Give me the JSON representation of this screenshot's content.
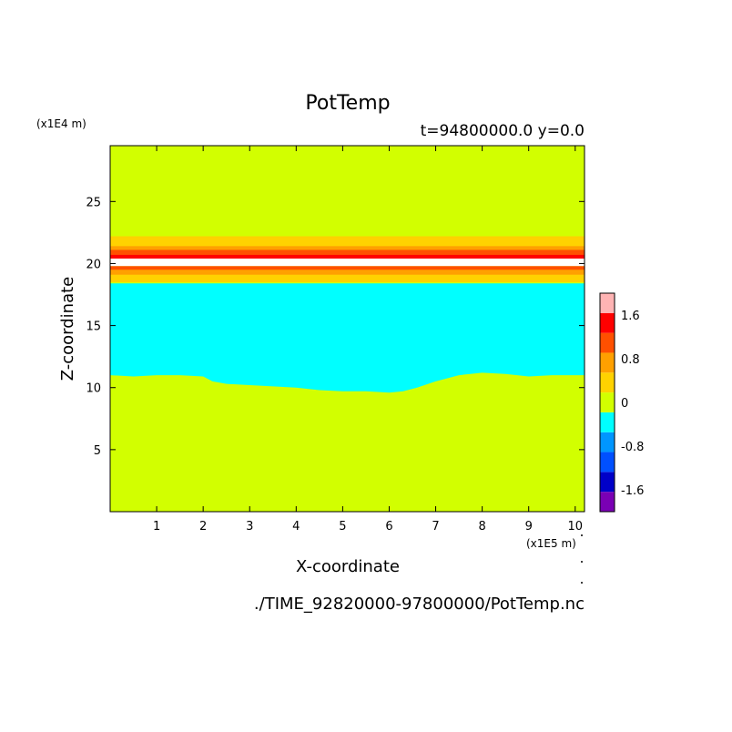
{
  "chart_data": {
    "type": "heatmap",
    "title": "PotTemp",
    "subtitle": "t=94800000.0 y=0.0",
    "xlabel": "X-coordinate",
    "ylabel": "Z-coordinate",
    "x_unit": "(x1E5 m)",
    "y_unit": "(x1E4 m)",
    "xlim": [
      0,
      10.2
    ],
    "ylim": [
      0,
      29.5
    ],
    "x_ticks": [
      1,
      2,
      3,
      4,
      5,
      6,
      7,
      8,
      9,
      10
    ],
    "y_ticks": [
      5,
      10,
      15,
      20,
      25
    ],
    "grid": false,
    "colorbar": {
      "levels": [
        -2.0,
        -1.6,
        -1.2,
        -0.8,
        -0.4,
        0,
        0.4,
        0.8,
        1.2,
        1.6,
        2.0
      ],
      "colors": [
        "#7a00b4",
        "#0000c8",
        "#0050ff",
        "#0096ff",
        "#00ffff",
        "#d2ff00",
        "#ffd200",
        "#ffa000",
        "#ff5000",
        "#ff0000",
        "#ffb4b4"
      ],
      "tick_labels": [
        "1.6",
        "0.8",
        "0",
        "-0.8",
        "-1.6"
      ],
      "tick_values": [
        1.6,
        0.8,
        0,
        -0.8,
        -1.6
      ]
    },
    "bands": [
      {
        "z_from": 0,
        "z_to": 29.5,
        "value": 0.2
      },
      {
        "z_from": 18.4,
        "z_to": 10.0,
        "value": -0.2
      },
      {
        "z_from": 18.5,
        "z_to": 19.2,
        "value": 0.6
      },
      {
        "z_from": 19.1,
        "z_to": 19.6,
        "value": 1.0
      },
      {
        "z_from": 19.5,
        "z_to": 19.8,
        "value": 1.4
      },
      {
        "z_from": 19.8,
        "z_to": 20.5,
        "value": 2.2
      },
      {
        "z_from": 20.4,
        "z_to": 20.8,
        "value": 1.8
      },
      {
        "z_from": 20.7,
        "z_to": 21.2,
        "value": 1.4
      },
      {
        "z_from": 21.1,
        "z_to": 21.5,
        "value": 1.0
      },
      {
        "z_from": 21.4,
        "z_to": 22.2,
        "value": 0.6
      }
    ],
    "cold_pool_bottom": [
      [
        0,
        11.0
      ],
      [
        0.5,
        10.9
      ],
      [
        1.0,
        11.0
      ],
      [
        1.5,
        11.0
      ],
      [
        2.0,
        10.9
      ],
      [
        2.2,
        10.5
      ],
      [
        2.5,
        10.3
      ],
      [
        3.0,
        10.2
      ],
      [
        3.5,
        10.1
      ],
      [
        4.0,
        10.0
      ],
      [
        4.5,
        9.8
      ],
      [
        5.0,
        9.7
      ],
      [
        5.5,
        9.7
      ],
      [
        6.0,
        9.6
      ],
      [
        6.3,
        9.7
      ],
      [
        6.6,
        10.0
      ],
      [
        7.0,
        10.5
      ],
      [
        7.5,
        11.0
      ],
      [
        8.0,
        11.2
      ],
      [
        8.5,
        11.1
      ],
      [
        9.0,
        10.9
      ],
      [
        9.5,
        11.0
      ],
      [
        10.2,
        11.0
      ]
    ],
    "footer": "./TIME_92820000-97800000/PotTemp.nc"
  }
}
